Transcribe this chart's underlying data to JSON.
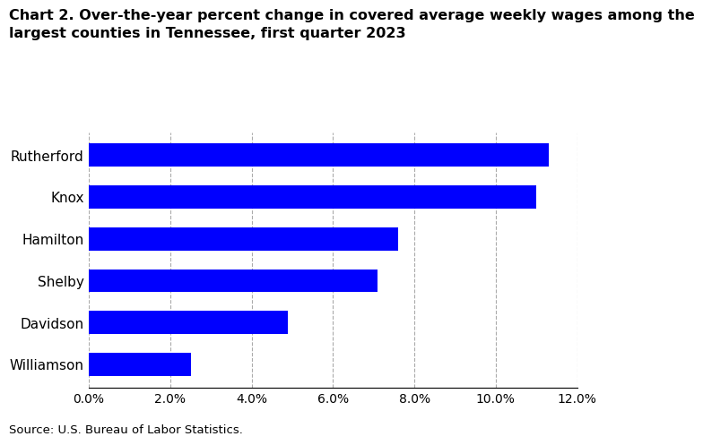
{
  "title_line1": "Chart 2. Over-the-year percent change in covered average weekly wages among the",
  "title_line2": "largest counties in Tennessee, first quarter 2023",
  "categories": [
    "Williamson",
    "Davidson",
    "Shelby",
    "Hamilton",
    "Knox",
    "Rutherford"
  ],
  "values": [
    2.5,
    4.9,
    7.1,
    7.6,
    11.0,
    11.3
  ],
  "bar_color": "#0000ff",
  "xlim": [
    0,
    12
  ],
  "xticks": [
    0,
    2,
    4,
    6,
    8,
    10,
    12
  ],
  "xtick_labels": [
    "0.0%",
    "2.0%",
    "4.0%",
    "6.0%",
    "8.0%",
    "10.0%",
    "12.0%"
  ],
  "source": "Source: U.S. Bureau of Labor Statistics.",
  "background_color": "#ffffff",
  "grid_color": "#aaaaaa",
  "title_fontsize": 11.5,
  "label_fontsize": 11,
  "tick_fontsize": 10,
  "source_fontsize": 9.5
}
